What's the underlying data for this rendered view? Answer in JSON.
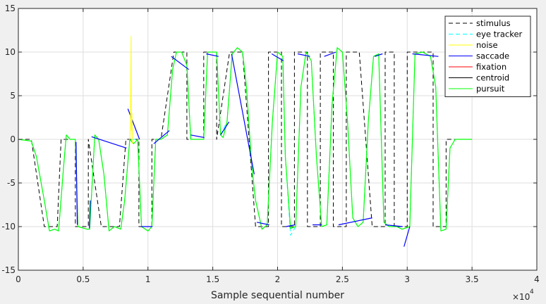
{
  "chart_data": {
    "type": "line",
    "title": "",
    "xlabel": "Sample sequential number",
    "ylabel": "",
    "x_exponent": "4",
    "xlim": [
      0,
      40000
    ],
    "ylim": [
      -15,
      15
    ],
    "xticks": [
      0,
      5000,
      10000,
      15000,
      20000,
      25000,
      30000,
      35000,
      40000
    ],
    "xtick_labels": [
      "0",
      "0.5",
      "1",
      "1.5",
      "2",
      "2.5",
      "3",
      "3.5",
      "4"
    ],
    "yticks": [
      -15,
      -10,
      -5,
      0,
      5,
      10,
      15
    ],
    "ytick_labels": [
      "-15",
      "-10",
      "-5",
      "0",
      "5",
      "10",
      "15"
    ],
    "grid": true,
    "legend_position": "top-right",
    "colors": {
      "stimulus": "#000000",
      "eye_tracker": "#00ffff",
      "noise": "#ffff00",
      "saccade": "#0000ff",
      "fixation": "#ff0000",
      "centroid": "#000000",
      "pursuit": "#00ff00"
    },
    "legend": [
      {
        "name": "stimulus",
        "color": "#000000",
        "style": "dashed"
      },
      {
        "name": "eye tracker",
        "color": "#00ffff",
        "style": "dashed"
      },
      {
        "name": "noise",
        "color": "#ffff00",
        "style": "solid"
      },
      {
        "name": "saccade",
        "color": "#0000ff",
        "style": "solid"
      },
      {
        "name": "fixation",
        "color": "#ff0000",
        "style": "solid"
      },
      {
        "name": "centroid",
        "color": "#000000",
        "style": "solid"
      },
      {
        "name": "pursuit",
        "color": "#00ff00",
        "style": "solid"
      }
    ],
    "stimulus": [
      [
        0,
        0
      ],
      [
        1000,
        0
      ],
      [
        2000,
        -10
      ],
      [
        3000,
        -10
      ],
      [
        3300,
        0
      ],
      [
        4400,
        0
      ],
      [
        4400,
        -10
      ],
      [
        5400,
        -10
      ],
      [
        5400,
        0
      ],
      [
        5400,
        0
      ],
      [
        6400,
        -10
      ],
      [
        7800,
        -10
      ],
      [
        8300,
        0
      ],
      [
        9300,
        0
      ],
      [
        9300,
        -10
      ],
      [
        10300,
        -10
      ],
      [
        10300,
        0
      ],
      [
        11000,
        0
      ],
      [
        12000,
        10
      ],
      [
        13000,
        10
      ],
      [
        13000,
        0
      ],
      [
        14300,
        0
      ],
      [
        14300,
        10
      ],
      [
        15300,
        10
      ],
      [
        15300,
        0
      ],
      [
        15300,
        0
      ],
      [
        16300,
        10
      ],
      [
        17300,
        10
      ],
      [
        18300,
        -10
      ],
      [
        19300,
        -10
      ],
      [
        19300,
        10
      ],
      [
        20300,
        10
      ],
      [
        20300,
        -10
      ],
      [
        21300,
        -10
      ],
      [
        21300,
        10
      ],
      [
        22300,
        10
      ],
      [
        22300,
        -10
      ],
      [
        23300,
        -10
      ],
      [
        23300,
        10
      ],
      [
        24300,
        10
      ],
      [
        24300,
        -10
      ],
      [
        25300,
        -10
      ],
      [
        25300,
        10
      ],
      [
        26300,
        10
      ],
      [
        27300,
        -10
      ],
      [
        28300,
        -10
      ],
      [
        28300,
        10
      ],
      [
        29000,
        10
      ],
      [
        29000,
        -10
      ],
      [
        30000,
        -10
      ],
      [
        30000,
        10
      ],
      [
        32000,
        10
      ],
      [
        32000,
        -10
      ],
      [
        33000,
        -10
      ],
      [
        33000,
        0
      ],
      [
        35000,
        0
      ]
    ],
    "pursuit": [
      [
        0,
        0
      ],
      [
        1000,
        -0.2
      ],
      [
        1400,
        -2
      ],
      [
        2000,
        -7
      ],
      [
        2400,
        -10.5
      ],
      [
        2800,
        -10.3
      ],
      [
        3100,
        -10.5
      ],
      [
        3500,
        -3
      ],
      [
        3700,
        0.5
      ],
      [
        4000,
        0
      ],
      [
        4400,
        0
      ],
      [
        4600,
        -10
      ],
      [
        5300,
        -10.3
      ],
      [
        5500,
        -10.3
      ],
      [
        5900,
        0.5
      ],
      [
        6200,
        0
      ],
      [
        6600,
        -4
      ],
      [
        7000,
        -10.5
      ],
      [
        7400,
        -10
      ],
      [
        7900,
        -10.3
      ],
      [
        8200,
        -7
      ],
      [
        8600,
        0
      ],
      [
        8900,
        -0.5
      ],
      [
        9200,
        0
      ],
      [
        9500,
        -10
      ],
      [
        10000,
        -10.5
      ],
      [
        10300,
        -10
      ],
      [
        10600,
        0
      ],
      [
        11000,
        0
      ],
      [
        11500,
        0.5
      ],
      [
        11900,
        8
      ],
      [
        12200,
        10
      ],
      [
        12600,
        10
      ],
      [
        13000,
        8.5
      ],
      [
        13300,
        0
      ],
      [
        13800,
        0
      ],
      [
        14300,
        0
      ],
      [
        14600,
        10
      ],
      [
        15300,
        10
      ],
      [
        15600,
        0.5
      ],
      [
        15800,
        0.2
      ],
      [
        16100,
        2
      ],
      [
        16500,
        9.8
      ],
      [
        16900,
        10.5
      ],
      [
        17300,
        10
      ],
      [
        17600,
        6
      ],
      [
        18000,
        -3
      ],
      [
        18300,
        -7
      ],
      [
        18800,
        -10.3
      ],
      [
        19200,
        -9.8
      ],
      [
        19600,
        2
      ],
      [
        20000,
        10
      ],
      [
        20400,
        9.5
      ],
      [
        20600,
        -2
      ],
      [
        21000,
        -10.2
      ],
      [
        21400,
        -10
      ],
      [
        21800,
        6
      ],
      [
        22200,
        10
      ],
      [
        22600,
        9
      ],
      [
        23000,
        -2
      ],
      [
        23400,
        -10
      ],
      [
        23800,
        -9.8
      ],
      [
        24200,
        4
      ],
      [
        24600,
        10.5
      ],
      [
        25000,
        10
      ],
      [
        25400,
        2
      ],
      [
        25800,
        -9
      ],
      [
        26200,
        -10
      ],
      [
        26600,
        -9.5
      ],
      [
        27000,
        2
      ],
      [
        27400,
        9.5
      ],
      [
        27800,
        9.8
      ],
      [
        28200,
        -9.5
      ],
      [
        28600,
        -10
      ],
      [
        29200,
        -10
      ],
      [
        29600,
        -10.3
      ],
      [
        30200,
        -10
      ],
      [
        30600,
        9.8
      ],
      [
        31200,
        10
      ],
      [
        31800,
        9.5
      ],
      [
        32200,
        6
      ],
      [
        32600,
        -10.5
      ],
      [
        33000,
        -10.3
      ],
      [
        33300,
        -1
      ],
      [
        33700,
        0
      ],
      [
        35000,
        0
      ]
    ],
    "eye_tracker": [
      [
        0,
        0
      ],
      [
        1000,
        -0.2
      ],
      [
        1400,
        -2
      ],
      [
        2000,
        -7
      ],
      [
        2400,
        -10.5
      ],
      [
        2800,
        -10.3
      ],
      [
        3100,
        -10.5
      ],
      [
        3500,
        -3
      ],
      [
        3700,
        0.5
      ],
      [
        4000,
        0
      ],
      [
        4400,
        0
      ],
      [
        4600,
        -10
      ],
      [
        5300,
        -10.3
      ],
      [
        5500,
        -10.3
      ],
      [
        5900,
        0.5
      ],
      [
        6200,
        0
      ],
      [
        6600,
        -4
      ],
      [
        7000,
        -10.5
      ],
      [
        7400,
        -10
      ],
      [
        7900,
        -10.3
      ],
      [
        8200,
        -7
      ],
      [
        8600,
        0
      ],
      [
        9200,
        0
      ],
      [
        9500,
        -10
      ],
      [
        10000,
        -10.5
      ],
      [
        10300,
        -10
      ],
      [
        10600,
        0
      ],
      [
        11000,
        0
      ],
      [
        11500,
        0.5
      ],
      [
        11900,
        8
      ],
      [
        12200,
        10
      ],
      [
        12600,
        10
      ],
      [
        13000,
        8.5
      ],
      [
        13300,
        0
      ],
      [
        14300,
        0
      ],
      [
        14600,
        10
      ],
      [
        15300,
        10
      ],
      [
        15600,
        0.5
      ],
      [
        16100,
        2
      ],
      [
        16500,
        9.8
      ],
      [
        16900,
        10.5
      ],
      [
        17300,
        10
      ],
      [
        17600,
        6
      ],
      [
        18000,
        -3
      ],
      [
        18300,
        -7
      ],
      [
        18800,
        -10.3
      ],
      [
        19200,
        -9.8
      ],
      [
        19600,
        2
      ],
      [
        20000,
        10
      ],
      [
        20400,
        9.5
      ],
      [
        20600,
        -2
      ],
      [
        21000,
        -11
      ],
      [
        21400,
        -10
      ],
      [
        21800,
        6
      ],
      [
        22200,
        10
      ],
      [
        22600,
        9
      ],
      [
        23000,
        -2
      ],
      [
        23400,
        -10
      ],
      [
        23800,
        -9.8
      ],
      [
        24200,
        4
      ],
      [
        24600,
        10.5
      ],
      [
        25000,
        10
      ],
      [
        25400,
        2
      ],
      [
        25800,
        -9
      ],
      [
        26200,
        -10
      ],
      [
        26600,
        -9.5
      ],
      [
        27000,
        2
      ],
      [
        27400,
        9.5
      ],
      [
        27800,
        9.8
      ],
      [
        28200,
        -9.5
      ],
      [
        28600,
        -10
      ],
      [
        29200,
        -10
      ],
      [
        29600,
        -10.3
      ],
      [
        30200,
        -10
      ],
      [
        30600,
        9.8
      ],
      [
        31200,
        10
      ],
      [
        31800,
        9.5
      ],
      [
        32200,
        6
      ],
      [
        32600,
        -10.5
      ],
      [
        33000,
        -10.3
      ],
      [
        33300,
        -1
      ],
      [
        33700,
        0
      ],
      [
        35000,
        0
      ]
    ],
    "saccade": [
      [
        4450,
        -0.3
      ],
      [
        4550,
        -9.8
      ],
      [
        5480,
        -10.2
      ],
      [
        5550,
        -7
      ],
      [
        5650,
        0.3
      ],
      [
        8350,
        -1
      ],
      [
        8450,
        3.5
      ],
      [
        9350,
        0
      ],
      [
        9450,
        -10
      ],
      [
        10350,
        -10
      ],
      [
        10450,
        -0.5
      ],
      [
        11650,
        1
      ],
      [
        11800,
        9.5
      ],
      [
        13150,
        8
      ],
      [
        13300,
        0.5
      ],
      [
        14350,
        0.2
      ],
      [
        14500,
        9.8
      ],
      [
        15450,
        9.5
      ],
      [
        15600,
        0.5
      ],
      [
        16250,
        2
      ],
      [
        16450,
        9.8
      ],
      [
        18200,
        -4
      ],
      [
        18400,
        -9.5
      ],
      [
        19350,
        -9.8
      ],
      [
        19550,
        9.8
      ],
      [
        20450,
        9
      ],
      [
        20650,
        -10
      ],
      [
        21350,
        -9.8
      ],
      [
        21550,
        9.8
      ],
      [
        22500,
        9.5
      ],
      [
        22700,
        -9.8
      ],
      [
        23400,
        -9.8
      ],
      [
        23600,
        9.5
      ],
      [
        24500,
        10
      ],
      [
        24700,
        -9.8
      ],
      [
        27300,
        -9
      ],
      [
        27500,
        9.5
      ],
      [
        28100,
        9.8
      ],
      [
        28300,
        -9.8
      ],
      [
        29650,
        -10
      ],
      [
        29750,
        -12.3
      ],
      [
        30200,
        -10
      ],
      [
        30400,
        9.8
      ],
      [
        32400,
        9.5
      ],
      [
        32600,
        -10.3
      ]
    ],
    "noise": [
      [
        8600,
        0
      ],
      [
        8650,
        2
      ],
      [
        8700,
        11.8
      ],
      [
        8720,
        1
      ],
      [
        8760,
        3
      ],
      [
        8800,
        -0.5
      ]
    ],
    "fixation": [],
    "centroid": []
  }
}
